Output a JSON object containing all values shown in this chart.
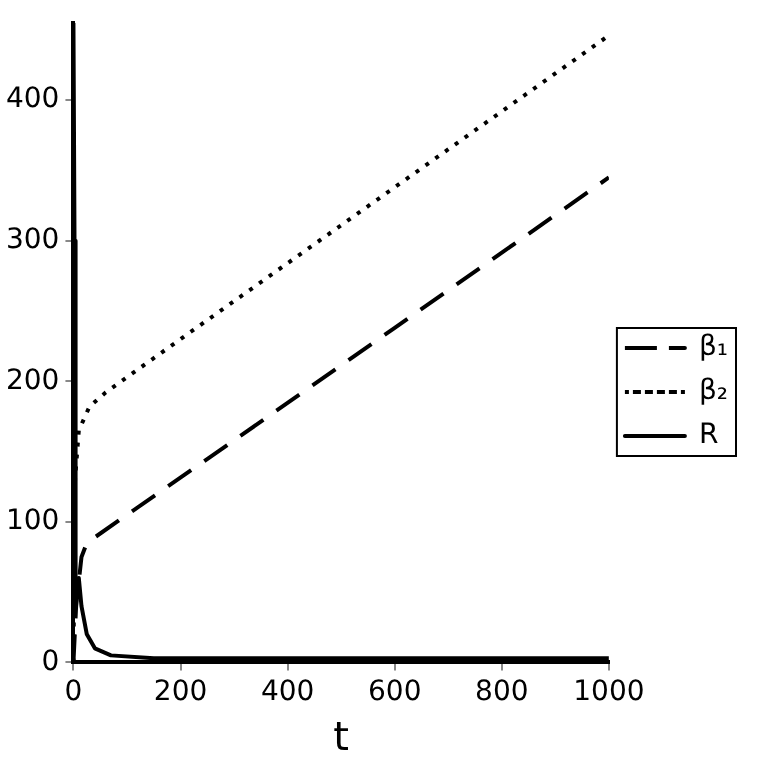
{
  "chart_data": {
    "type": "line",
    "xlabel": "t",
    "xlim": [
      0,
      1000
    ],
    "ylim": [
      0,
      455
    ],
    "xticks": [
      0,
      200,
      400,
      600,
      800,
      1000
    ],
    "yticks": [
      0,
      100,
      200,
      300,
      400
    ],
    "grid": false,
    "legend": "right",
    "marker": "none",
    "series": [
      {
        "name": "β₁",
        "color": "#000000",
        "line_style": "dashed",
        "x": [
          0,
          5,
          15,
          25,
          100,
          300,
          600,
          1000
        ],
        "values": [
          0,
          40,
          75,
          85,
          105,
          158,
          238,
          345
        ]
      },
      {
        "name": "β₂",
        "color": "#000000",
        "line_style": "dotted",
        "x": [
          0,
          3,
          10,
          30,
          60,
          200,
          600,
          1000
        ],
        "values": [
          0,
          130,
          165,
          182,
          192,
          230,
          338,
          446
        ]
      },
      {
        "name": "R",
        "color": "#000000",
        "line_style": "solid",
        "x": [
          0,
          2,
          4,
          10,
          15,
          25,
          40,
          70,
          150,
          300,
          1000
        ],
        "values": [
          455,
          300,
          45,
          60,
          40,
          20,
          10,
          5,
          3,
          3,
          3
        ]
      }
    ]
  }
}
